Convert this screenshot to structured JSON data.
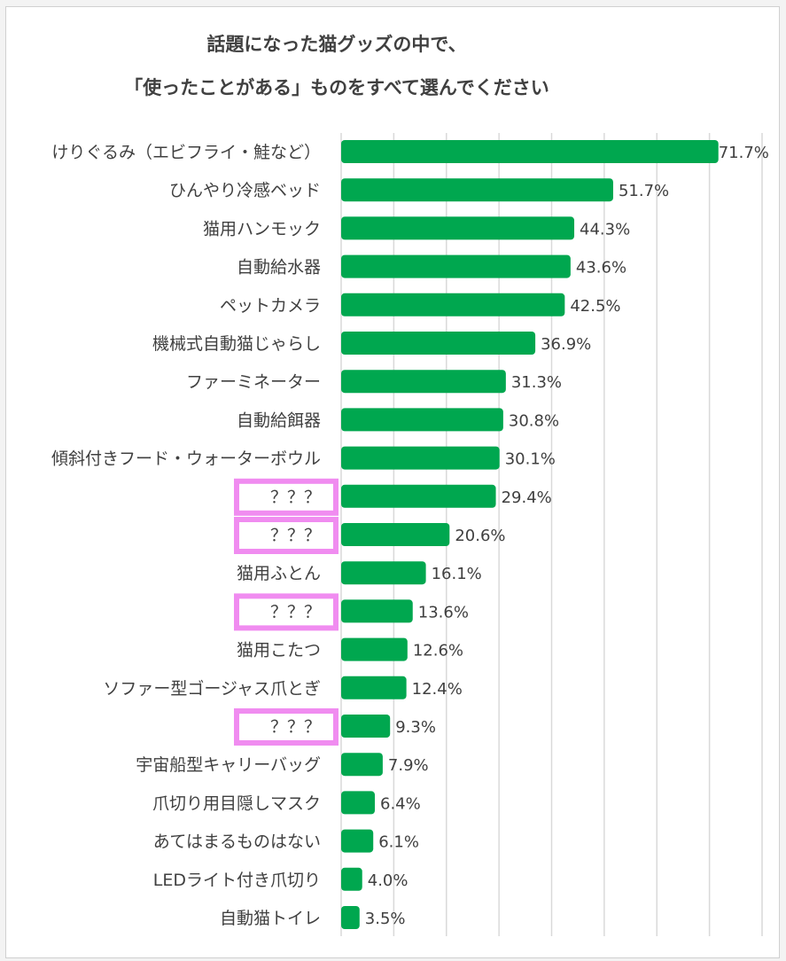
{
  "chart_data": {
    "type": "bar",
    "orientation": "horizontal",
    "title": [
      "話題になった猫グッズの中で、",
      "「使ったことがある」ものをすべて選んでください"
    ],
    "categories": [
      "けりぐるみ（エビフライ・鮭など）",
      "ひんやり冷感ベッド",
      "猫用ハンモック",
      "自動給水器",
      "ペットカメラ",
      "機械式自動猫じゃらし",
      "ファーミネーター",
      "自動給餌器",
      "傾斜付きフード・ウォーターボウル",
      "？？？",
      "？？？",
      "猫用ふとん",
      "？？？",
      "猫用こたつ",
      "ソファー型ゴージャス爪とぎ",
      "？？？",
      "宇宙船型キャリーバッグ",
      "爪切り用目隠しマスク",
      "あてはまるものはない",
      "LEDライト付き爪切り",
      "自動猫トイレ"
    ],
    "values": [
      71.7,
      51.7,
      44.3,
      43.6,
      42.5,
      36.9,
      31.3,
      30.8,
      30.1,
      29.4,
      20.6,
      16.1,
      13.6,
      12.6,
      12.4,
      9.3,
      7.9,
      6.4,
      6.1,
      4.0,
      3.5
    ],
    "value_labels": [
      "71.7%",
      "51.7%",
      "44.3%",
      "43.6%",
      "42.5%",
      "36.9%",
      "31.3%",
      "30.8%",
      "30.1%",
      "29.4%",
      "20.6%",
      "16.1%",
      "13.6%",
      "12.6%",
      "12.4%",
      "9.3%",
      "7.9%",
      "6.4%",
      "6.1%",
      "4.0%",
      "3.5%"
    ],
    "highlighted": [
      9,
      10,
      12,
      15
    ],
    "xlim": [
      0,
      80
    ],
    "grid": true,
    "unit": "%",
    "colors": {
      "bar": "#00a74f",
      "highlight_box": "#f08cf0",
      "grid": "#d9d9d9"
    }
  }
}
